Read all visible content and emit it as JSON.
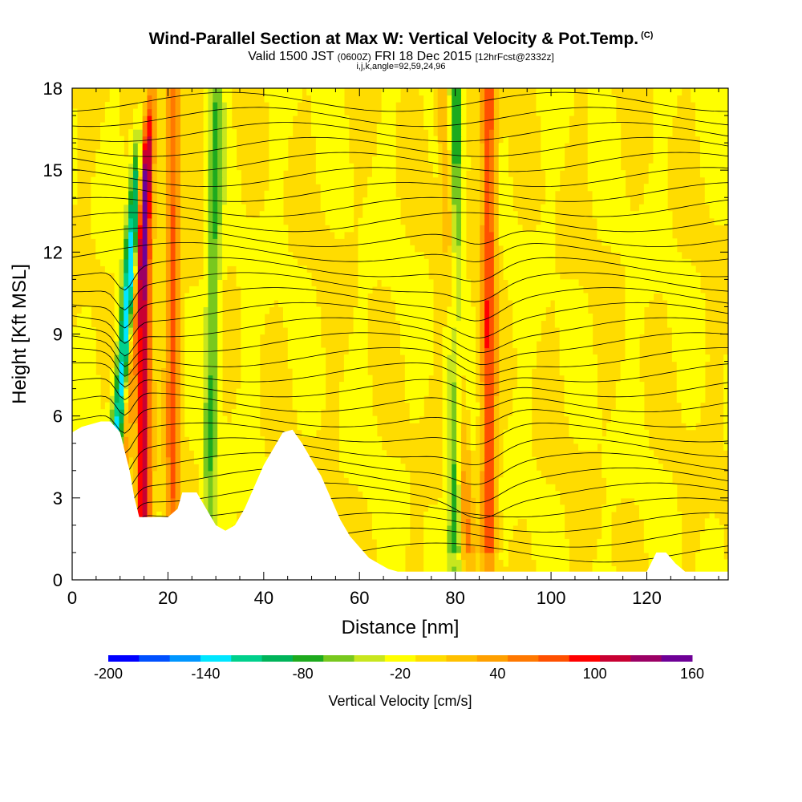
{
  "header": {
    "title": "Wind-Parallel Section at Max W: Vertical Velocity & Pot.Temp.",
    "copyright": "(C)",
    "valid_prefix": "Valid 1500 JST",
    "valid_z": "(0600Z)",
    "valid_date": "FRI 18 Dec 2015",
    "forecast": "[12hrFcst@2332z]",
    "indices": "i,j,k,angle=92,59,24,96"
  },
  "chart_data": {
    "type": "heatmap",
    "xlabel": "Distance [nm]",
    "ylabel": "Height [Kft MSL]",
    "xlim": [
      0,
      137
    ],
    "ylim": [
      0,
      18
    ],
    "x_ticks": [
      0,
      20,
      40,
      60,
      80,
      100,
      120
    ],
    "y_ticks": [
      0,
      3,
      6,
      9,
      12,
      15,
      18
    ],
    "colorbar": {
      "label": "Vertical Velocity [cm/s]",
      "min": -200,
      "max": 160,
      "step": 20,
      "tick_labels": [
        "-200",
        "-140",
        "-80",
        "-20",
        "40",
        "100",
        "160"
      ],
      "colors": [
        "#0000ff",
        "#0050ff",
        "#0096ff",
        "#00e6ff",
        "#00d08c",
        "#00b45a",
        "#1eaa1e",
        "#78c81e",
        "#c8e61e",
        "#ffff00",
        "#ffdc00",
        "#ffc000",
        "#ffa000",
        "#ff7800",
        "#ff5000",
        "#ff0000",
        "#c80032",
        "#9b0064",
        "#6e0096"
      ]
    },
    "fill_levels": [
      -200,
      -180,
      -160,
      -140,
      -120,
      -100,
      -80,
      -60,
      -40,
      -20,
      0,
      20,
      40,
      60,
      80,
      100,
      120,
      140,
      160
    ],
    "terrain_profile": {
      "x": [
        0,
        2,
        6,
        8,
        10,
        12,
        13,
        14,
        16,
        19,
        20,
        22,
        23,
        26,
        28,
        30,
        32,
        34,
        36,
        38,
        40,
        42,
        44,
        46,
        48,
        50,
        52,
        54,
        56,
        58,
        60,
        62,
        64,
        66,
        68,
        70,
        75,
        80,
        90,
        100,
        110,
        118,
        120,
        122,
        124,
        126,
        128,
        137
      ],
      "height_kft": [
        5.4,
        5.6,
        5.8,
        5.8,
        5.4,
        4.0,
        3.0,
        2.3,
        2.3,
        2.3,
        2.3,
        2.6,
        3.2,
        3.2,
        2.6,
        2.0,
        1.8,
        2.0,
        2.6,
        3.4,
        4.2,
        4.8,
        5.4,
        5.5,
        5.0,
        4.4,
        3.8,
        3.0,
        2.2,
        1.6,
        1.2,
        0.8,
        0.6,
        0.4,
        0.3,
        0.3,
        0.3,
        0.3,
        0.3,
        0.3,
        0.3,
        0.3,
        0.3,
        1.0,
        1.0,
        0.6,
        0.3,
        0.3
      ]
    },
    "features": [
      {
        "kind": "updraft",
        "x_center": 11,
        "tilt_nm_per_kft": 0.45,
        "peak_cm_s": 120
      },
      {
        "kind": "downdraft",
        "x_center": 10,
        "tilt_nm_per_kft": 0.45,
        "peak_cm_s": -200
      },
      {
        "kind": "updraft",
        "x_center": 15,
        "tilt_nm_per_kft": 0.0,
        "peak_cm_s": 140
      },
      {
        "kind": "updraft",
        "x_center": 21,
        "tilt_nm_per_kft": 0.0,
        "peak_cm_s": 80
      },
      {
        "kind": "downdraft",
        "x_center": 29,
        "tilt_nm_per_kft": 0.1,
        "peak_cm_s": -60
      },
      {
        "kind": "updraft",
        "x_center": 87,
        "tilt_nm_per_kft": 0.0,
        "peak_cm_s": 100
      },
      {
        "kind": "updraft",
        "x_center": 81,
        "tilt_nm_per_kft": -0.3,
        "peak_cm_s": 60
      },
      {
        "kind": "downdraft",
        "x_center": 80,
        "tilt_nm_per_kft": 0.0,
        "peak_cm_s": -80
      }
    ]
  }
}
